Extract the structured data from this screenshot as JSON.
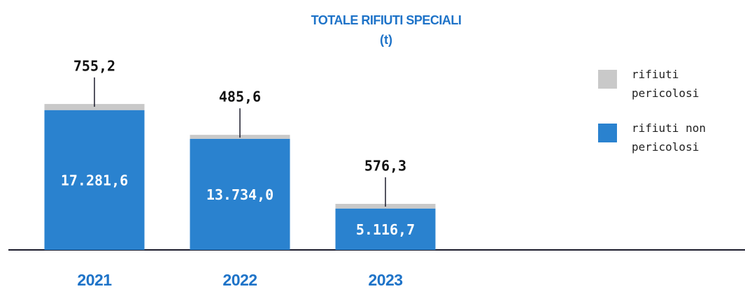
{
  "chart_data": {
    "type": "stacked_bar",
    "title": "TOTALE RIFIUTI SPECIALI",
    "subtitle": "(t)",
    "categories": [
      "2021",
      "2022",
      "2023"
    ],
    "series": [
      {
        "name": "rifiuti non pericolosi",
        "color": "#2a82cf",
        "values": [
          17281.6,
          13734.0,
          5116.7
        ],
        "value_labels": [
          "17.281,6",
          "13.734,0",
          "5.116,7"
        ]
      },
      {
        "name": "rifiuti pericolosi",
        "color": "#c9c9c9",
        "values": [
          755.2,
          485.6,
          576.3
        ],
        "value_labels": [
          "755,2",
          "485,6",
          "576,3"
        ]
      }
    ],
    "ylim": [
      0,
      22000
    ],
    "legend": "right"
  }
}
